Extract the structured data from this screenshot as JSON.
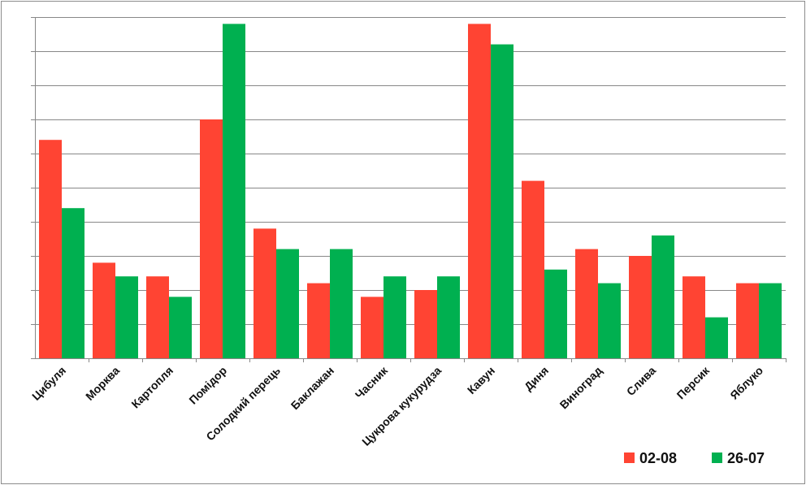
{
  "chart_data": {
    "type": "bar",
    "categories": [
      "Цибуля",
      "Морква",
      "Картопля",
      "Помідор",
      "Солодкий перець",
      "Баклажан",
      "Часник",
      "Цукрова кукурудза",
      "Кавун",
      "Диня",
      "Виноград",
      "Слива",
      "Персик",
      "Яблуко"
    ],
    "series": [
      {
        "name": "02-08",
        "color": "#ff4433",
        "values": [
          6.4,
          2.8,
          2.4,
          7.0,
          3.8,
          2.2,
          1.8,
          2.0,
          9.8,
          5.2,
          3.2,
          3.0,
          2.4,
          2.2
        ]
      },
      {
        "name": "26-07",
        "color": "#00b050",
        "values": [
          4.4,
          2.4,
          1.8,
          9.8,
          3.2,
          3.2,
          2.4,
          2.4,
          9.2,
          2.6,
          2.2,
          3.6,
          1.2,
          2.2
        ]
      }
    ],
    "ylim": [
      0,
      10
    ],
    "yticks": [
      0,
      1,
      2,
      3,
      4,
      5,
      6,
      7,
      8,
      9,
      10
    ],
    "ytick_labels_visible": false,
    "grid": true,
    "legend_position": "bottom-right",
    "title": "",
    "xlabel": "",
    "ylabel": ""
  }
}
